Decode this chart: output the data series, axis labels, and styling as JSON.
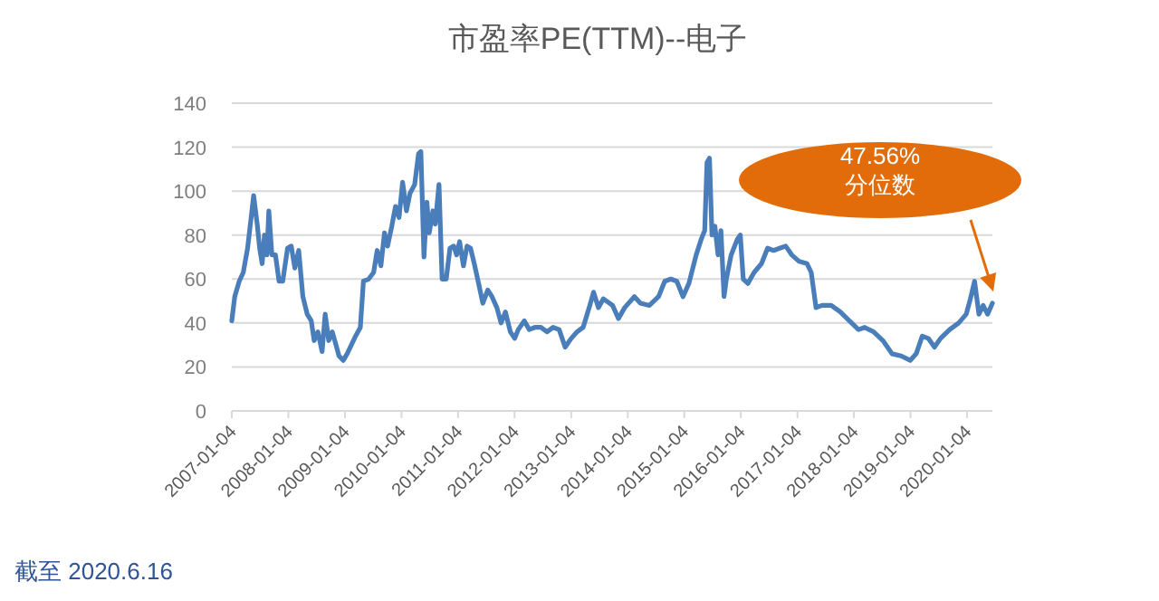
{
  "chart_data": {
    "type": "line",
    "title": "市盈率PE(TTM)--电子",
    "x": [
      "2007-01-04",
      "2007-01-23",
      "2007-02-21",
      "2007-03-19",
      "2007-04-16",
      "2007-05-09",
      "2007-05-25",
      "2007-06-17",
      "2007-07-03",
      "2007-07-19",
      "2007-08-03",
      "2007-08-19",
      "2007-08-31",
      "2007-09-20",
      "2007-10-13",
      "2007-11-05",
      "2007-11-29",
      "2007-12-30",
      "2008-01-23",
      "2008-02-15",
      "2008-03-11",
      "2008-04-07",
      "2008-05-05",
      "2008-05-31",
      "2008-06-19",
      "2008-07-13",
      "2008-08-09",
      "2008-08-29",
      "2008-09-21",
      "2008-10-14",
      "2008-11-07",
      "2008-11-26",
      "2008-12-24",
      "2009-01-18",
      "2009-02-14",
      "2009-03-13",
      "2009-04-13",
      "2009-05-03",
      "2009-06-06",
      "2009-07-08",
      "2009-07-31",
      "2009-08-24",
      "2009-09-16",
      "2009-10-06",
      "2009-11-02",
      "2009-11-26",
      "2009-12-19",
      "2010-01-11",
      "2010-02-05",
      "2010-02-28",
      "2010-03-30",
      "2010-04-24",
      "2010-05-09",
      "2010-05-17",
      "2010-05-29",
      "2010-06-17",
      "2010-07-02",
      "2010-07-26",
      "2010-08-10",
      "2010-09-03",
      "2010-09-23",
      "2010-10-20",
      "2010-11-13",
      "2010-12-07",
      "2010-12-26",
      "2011-01-14",
      "2011-02-08",
      "2011-03-03",
      "2011-03-26",
      "2011-04-19",
      "2011-05-17",
      "2011-06-13",
      "2011-07-15",
      "2011-08-11",
      "2011-09-12",
      "2011-10-09",
      "2011-11-06",
      "2011-12-08",
      "2012-01-05",
      "2012-01-28",
      "2012-03-07",
      "2012-04-08",
      "2012-05-14",
      "2012-06-22",
      "2012-08-01",
      "2012-09-09",
      "2012-10-18",
      "2012-11-26",
      "2013-01-04",
      "2013-02-11",
      "2013-03-22",
      "2013-04-30",
      "2013-05-28",
      "2013-06-29",
      "2013-07-30",
      "2013-09-28",
      "2013-11-05",
      "2013-12-15",
      "2014-02-16",
      "2014-03-27",
      "2014-05-24",
      "2014-07-22",
      "2014-08-31",
      "2014-10-09",
      "2014-11-17",
      "2014-12-27",
      "2015-02-03",
      "2015-03-22",
      "2015-04-23",
      "2015-05-16",
      "2015-05-31",
      "2015-06-16",
      "2015-07-02",
      "2015-07-21",
      "2015-08-10",
      "2015-08-29",
      "2015-09-18",
      "2015-10-03",
      "2015-11-03",
      "2015-12-12",
      "2016-01-01",
      "2016-01-20",
      "2016-02-19",
      "2016-03-30",
      "2016-05-17",
      "2016-06-25",
      "2016-08-03",
      "2016-09-11",
      "2016-10-20",
      "2016-11-28",
      "2017-01-15",
      "2017-03-07",
      "2017-04-03",
      "2017-05-04",
      "2017-06-12",
      "2017-08-10",
      "2017-10-08",
      "2017-12-05",
      "2018-02-02",
      "2018-03-14",
      "2018-05-11",
      "2018-07-10",
      "2018-09-07",
      "2018-11-05",
      "2019-01-02",
      "2019-02-10",
      "2019-03-21",
      "2019-04-29",
      "2019-06-08",
      "2019-07-17",
      "2019-09-14",
      "2019-11-11",
      "2019-12-30",
      "2020-01-26",
      "2020-02-22",
      "2020-03-21",
      "2020-04-17",
      "2020-05-16",
      "2020-06-16"
    ],
    "series": [
      {
        "color": "#4a7ebb",
        "values": [
          41,
          52,
          59,
          63,
          74,
          88,
          98,
          85,
          74,
          67,
          80,
          71,
          91,
          71,
          71,
          59,
          59,
          74,
          75,
          65,
          73,
          52,
          44,
          41,
          32,
          36,
          27,
          44,
          32,
          36,
          30,
          25,
          23,
          26,
          30,
          34,
          38,
          59,
          60,
          63,
          73,
          66,
          81,
          75,
          84,
          93,
          88,
          104,
          91,
          99,
          103,
          117,
          118,
          99,
          70,
          95,
          81,
          91,
          85,
          103,
          60,
          60,
          74,
          75,
          71,
          77,
          66,
          75,
          74,
          67,
          58,
          49,
          55,
          52,
          47,
          40,
          45,
          36,
          33,
          37,
          41,
          37,
          38,
          38,
          36,
          38,
          37,
          29,
          33,
          36,
          38,
          47,
          54,
          47,
          51,
          48,
          42,
          47,
          52,
          49,
          48,
          52,
          59,
          60,
          59,
          52,
          58,
          71,
          78,
          82,
          113,
          115,
          80,
          84,
          71,
          82,
          52,
          60,
          71,
          78,
          80,
          60,
          58,
          63,
          67,
          74,
          73,
          74,
          75,
          71,
          68,
          67,
          63,
          47,
          48,
          48,
          45,
          41,
          37,
          38,
          36,
          32,
          26,
          25,
          23,
          26,
          34,
          33,
          29,
          33,
          37,
          40,
          44,
          51,
          59,
          44,
          48,
          44,
          49
        ]
      }
    ],
    "xlim": [
      "2007-01-04",
      "2020-06-16"
    ],
    "xticks": [
      "2007-01-04",
      "2008-01-04",
      "2009-01-04",
      "2010-01-04",
      "2011-01-04",
      "2012-01-04",
      "2013-01-04",
      "2014-01-04",
      "2015-01-04",
      "2016-01-04",
      "2017-01-04",
      "2018-01-04",
      "2019-01-04",
      "2020-01-04"
    ],
    "ylim": [
      0,
      140
    ],
    "yticks": [
      0,
      20,
      40,
      60,
      80,
      100,
      120,
      140
    ],
    "grid": "y",
    "marker": "none",
    "line_style": "solid",
    "annotations": [
      "47.56%\n分位数",
      "截至 2020.6.16"
    ]
  }
}
